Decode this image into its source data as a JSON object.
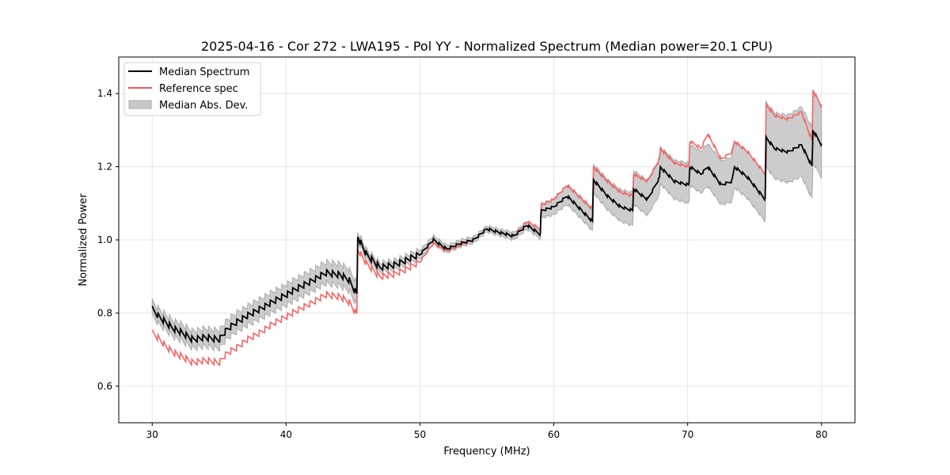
{
  "chart_data": {
    "type": "line",
    "title": "2025-04-16 - Cor 272 - LWA195 - Pol YY - Normalized Spectrum (Median power=20.1 CPU)",
    "xlabel": "Frequency (MHz)",
    "ylabel": "Normalized Power",
    "xlim": [
      27.5,
      82.5
    ],
    "ylim": [
      0.5,
      1.5
    ],
    "xticks": [
      30,
      40,
      50,
      60,
      70,
      80
    ],
    "xtick_labels": [
      "30",
      "40",
      "50",
      "60",
      "70",
      "80"
    ],
    "yticks": [
      0.6,
      0.8,
      1.0,
      1.2,
      1.4
    ],
    "ytick_labels": [
      "0.6",
      "0.8",
      "1.0",
      "1.2",
      "1.4"
    ],
    "grid": true,
    "legend": {
      "placement": "top-left",
      "entries": [
        {
          "label": "Median Spectrum",
          "kind": "line",
          "color": "#000000"
        },
        {
          "label": "Reference spec",
          "kind": "line",
          "color": "#f05a5a"
        },
        {
          "label": "Median Abs. Dev.",
          "kind": "patch",
          "color": "#c8c8c8"
        }
      ]
    },
    "colors": {
      "median": "#000000",
      "reference": "#f46464",
      "mad_fill": "#cccccc",
      "mad_edge": "#aaaaaa",
      "grid": "#e6e6e6"
    },
    "series": [
      {
        "name": "Median Spectrum",
        "x": [
          30.0,
          30.5,
          31.0,
          31.5,
          32.0,
          32.5,
          33.0,
          34.0,
          35.0,
          35.6,
          36.3,
          37.0,
          38.0,
          39.0,
          40.0,
          41.0,
          42.0,
          43.0,
          44.0,
          44.7,
          45.3,
          45.35,
          46.0,
          47.0,
          48.0,
          49.0,
          50.0,
          50.5,
          51.0,
          52.0,
          53.0,
          54.0,
          55.0,
          56.0,
          57.0,
          58.0,
          59.0,
          59.05,
          60.0,
          61.0,
          62.9,
          62.95,
          64.0,
          65.0,
          65.9,
          65.95,
          67.0,
          67.9,
          67.95,
          69.0,
          70.1,
          70.15,
          71.0,
          71.5,
          72.5,
          73.3,
          73.5,
          74.5,
          75.8,
          75.85,
          76.5,
          77.5,
          78.5,
          79.3,
          79.35,
          80.0
        ],
        "values": [
          0.81,
          0.79,
          0.775,
          0.76,
          0.75,
          0.74,
          0.728,
          0.733,
          0.728,
          0.755,
          0.775,
          0.79,
          0.81,
          0.83,
          0.85,
          0.87,
          0.89,
          0.91,
          0.905,
          0.89,
          0.85,
          1.01,
          0.96,
          0.925,
          0.93,
          0.945,
          0.96,
          0.98,
          1.0,
          0.975,
          0.99,
          1.0,
          1.03,
          1.02,
          1.01,
          1.04,
          1.015,
          1.08,
          1.09,
          1.12,
          1.05,
          1.165,
          1.12,
          1.09,
          1.08,
          1.14,
          1.11,
          1.17,
          1.2,
          1.16,
          1.15,
          1.2,
          1.18,
          1.2,
          1.15,
          1.16,
          1.2,
          1.17,
          1.11,
          1.28,
          1.25,
          1.24,
          1.26,
          1.2,
          1.3,
          1.26
        ]
      },
      {
        "name": "Reference spec",
        "x": [
          30.0,
          30.5,
          31.0,
          31.5,
          32.0,
          32.5,
          33.0,
          34.0,
          35.0,
          35.6,
          36.3,
          37.0,
          38.0,
          39.0,
          40.0,
          41.0,
          42.0,
          43.0,
          44.0,
          44.7,
          45.3,
          45.35,
          46.0,
          47.0,
          48.0,
          49.0,
          50.0,
          50.5,
          51.0,
          52.0,
          53.0,
          54.0,
          55.0,
          56.0,
          57.0,
          58.0,
          59.0,
          59.05,
          60.0,
          61.0,
          62.9,
          62.95,
          64.0,
          65.0,
          65.9,
          65.95,
          67.0,
          67.9,
          67.95,
          69.0,
          70.1,
          70.15,
          71.0,
          71.5,
          72.5,
          73.3,
          73.5,
          74.5,
          75.8,
          75.85,
          76.5,
          77.5,
          78.5,
          79.3,
          79.35,
          80.0
        ],
        "values": [
          0.745,
          0.73,
          0.71,
          0.695,
          0.685,
          0.675,
          0.665,
          0.67,
          0.665,
          0.69,
          0.705,
          0.725,
          0.745,
          0.77,
          0.79,
          0.81,
          0.83,
          0.85,
          0.845,
          0.83,
          0.795,
          0.975,
          0.935,
          0.9,
          0.905,
          0.92,
          0.94,
          0.965,
          0.99,
          0.97,
          0.985,
          1.0,
          1.03,
          1.02,
          1.01,
          1.05,
          1.03,
          1.095,
          1.11,
          1.15,
          1.085,
          1.2,
          1.16,
          1.13,
          1.12,
          1.18,
          1.16,
          1.22,
          1.25,
          1.21,
          1.2,
          1.27,
          1.25,
          1.29,
          1.22,
          1.24,
          1.27,
          1.24,
          1.18,
          1.37,
          1.34,
          1.33,
          1.35,
          1.27,
          1.41,
          1.365
        ]
      },
      {
        "name": "Median Abs. Dev.",
        "x": [
          30.0,
          35.0,
          40.0,
          45.3,
          45.35,
          50.0,
          55.0,
          59.0,
          59.05,
          62.9,
          62.95,
          70.0,
          75.8,
          75.85,
          80.0
        ],
        "half_width": [
          0.02,
          0.025,
          0.028,
          0.03,
          0.012,
          0.012,
          0.008,
          0.012,
          0.02,
          0.025,
          0.035,
          0.05,
          0.06,
          0.08,
          0.09
        ]
      }
    ]
  }
}
